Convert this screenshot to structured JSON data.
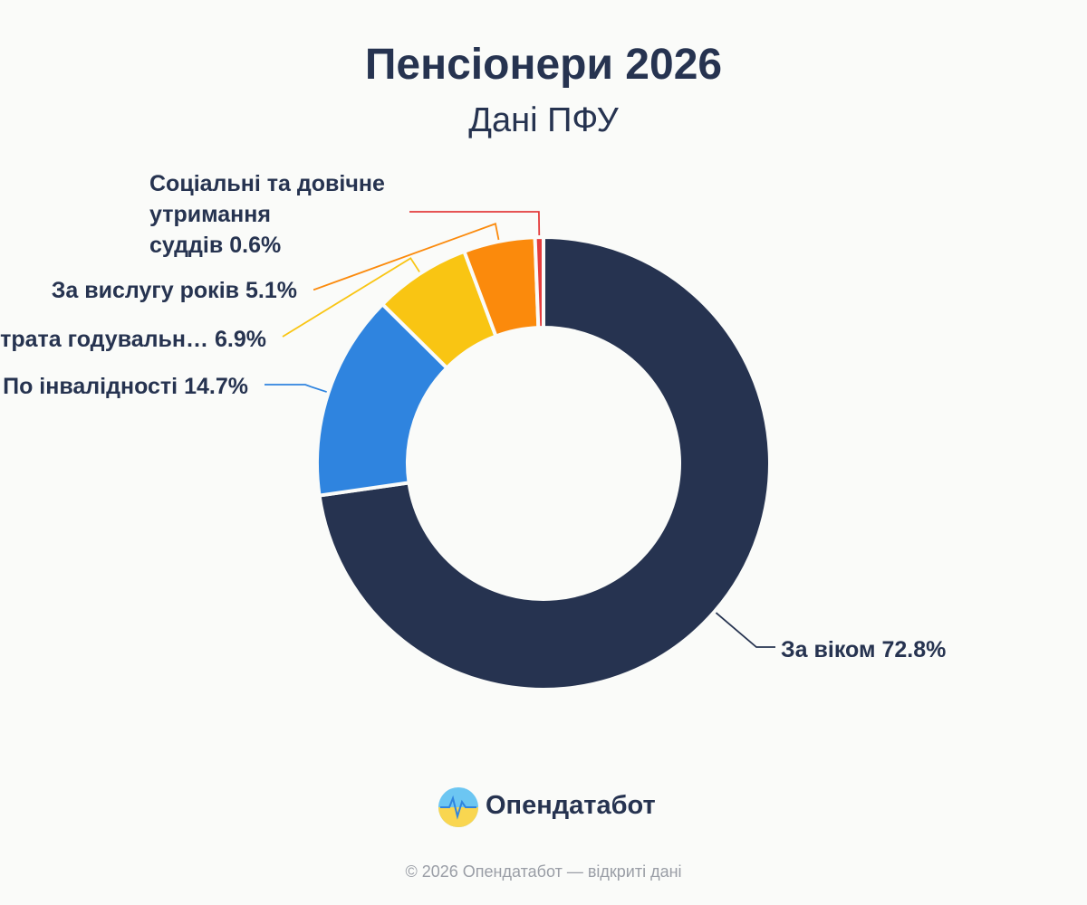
{
  "chart_data": {
    "type": "pie",
    "title": "Пенсіонери 2026",
    "subtitle": "Дані ПФУ",
    "categories": [
      "За віком",
      "По інвалідності",
      "Втрата годувальн…",
      "За вислугу років",
      "Соціальні та довічне утримання суддів"
    ],
    "values": [
      72.8,
      14.7,
      6.9,
      5.1,
      0.6
    ],
    "value_labels": [
      "72.8%",
      "14.7%",
      "6.9%",
      "5.1%",
      "0.6%"
    ],
    "colors": [
      "#263350",
      "#2f84df",
      "#f9c513",
      "#fb8a0c",
      "#e43c3c"
    ]
  },
  "brand": "Опендатабот",
  "footer": "© 2026 Опендатабот — відкриті дані"
}
